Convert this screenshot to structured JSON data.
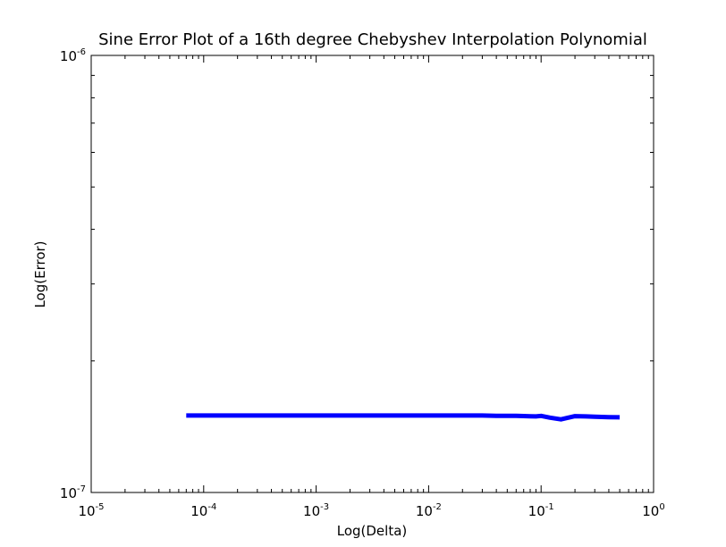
{
  "chart_data": {
    "type": "line",
    "title": "Sine Error Plot of a 16th degree Chebyshev Interpolation Polynomial",
    "xlabel": "Log(Delta)",
    "ylabel": "Log(Error)",
    "xscale": "log",
    "yscale": "log",
    "xlim": [
      1e-05,
      1
    ],
    "ylim": [
      1e-07,
      1e-06
    ],
    "grid": false,
    "x_ticks": [
      {
        "base": "10",
        "exp": "-5",
        "value": 1e-05
      },
      {
        "base": "10",
        "exp": "-4",
        "value": 0.0001
      },
      {
        "base": "10",
        "exp": "-3",
        "value": 0.001
      },
      {
        "base": "10",
        "exp": "-2",
        "value": 0.01
      },
      {
        "base": "10",
        "exp": "-1",
        "value": 0.1
      },
      {
        "base": "10",
        "exp": "0",
        "value": 1
      }
    ],
    "y_ticks": [
      {
        "base": "10",
        "exp": "-7",
        "value": 1e-07
      },
      {
        "base": "10",
        "exp": "-6",
        "value": 1e-06
      }
    ],
    "series": [
      {
        "color": "#0000ff",
        "x": [
          7e-05,
          0.0001,
          0.0003,
          0.001,
          0.003,
          0.01,
          0.02,
          0.03,
          0.04,
          0.05,
          0.06,
          0.07,
          0.08,
          0.09,
          0.1,
          0.12,
          0.15,
          0.2,
          0.25,
          0.3,
          0.4,
          0.5
        ],
        "y": [
          1.5e-07,
          1.5e-07,
          1.5e-07,
          1.5e-07,
          1.5e-07,
          1.5e-07,
          1.5e-07,
          1.5e-07,
          1.498e-07,
          1.497e-07,
          1.498e-07,
          1.496e-07,
          1.494e-07,
          1.493e-07,
          1.497e-07,
          1.483e-07,
          1.47e-07,
          1.495e-07,
          1.493e-07,
          1.49e-07,
          1.487e-07,
          1.486e-07
        ]
      }
    ]
  }
}
